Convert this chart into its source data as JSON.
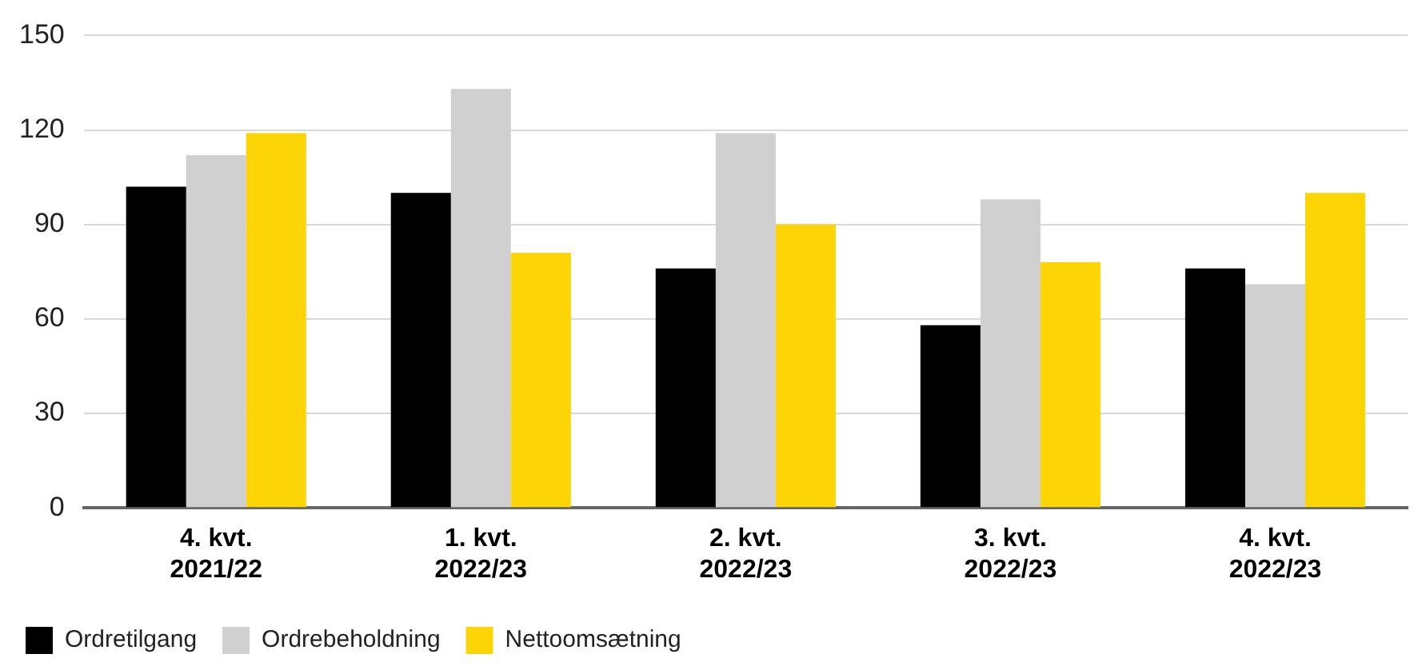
{
  "chart_data": {
    "type": "bar",
    "categories": [
      "4. kvt.\n2021/22",
      "1. kvt.\n2022/23",
      "2. kvt.\n2022/23",
      "3. kvt.\n2022/23",
      "4. kvt.\n2022/23"
    ],
    "series": [
      {
        "name": "Ordretilgang",
        "color": "#000000",
        "values": [
          102,
          100,
          76,
          58,
          76
        ]
      },
      {
        "name": "Ordrebeholdning",
        "color": "#d0d0d0",
        "values": [
          112,
          133,
          119,
          98,
          71
        ]
      },
      {
        "name": "Nettoomsætning",
        "color": "#fdd406",
        "values": [
          119,
          81,
          90,
          78,
          100
        ]
      }
    ],
    "ylim": [
      0,
      150
    ],
    "yticks": [
      0,
      30,
      60,
      90,
      120,
      150
    ],
    "grid": "y",
    "legend": "bottom left"
  }
}
